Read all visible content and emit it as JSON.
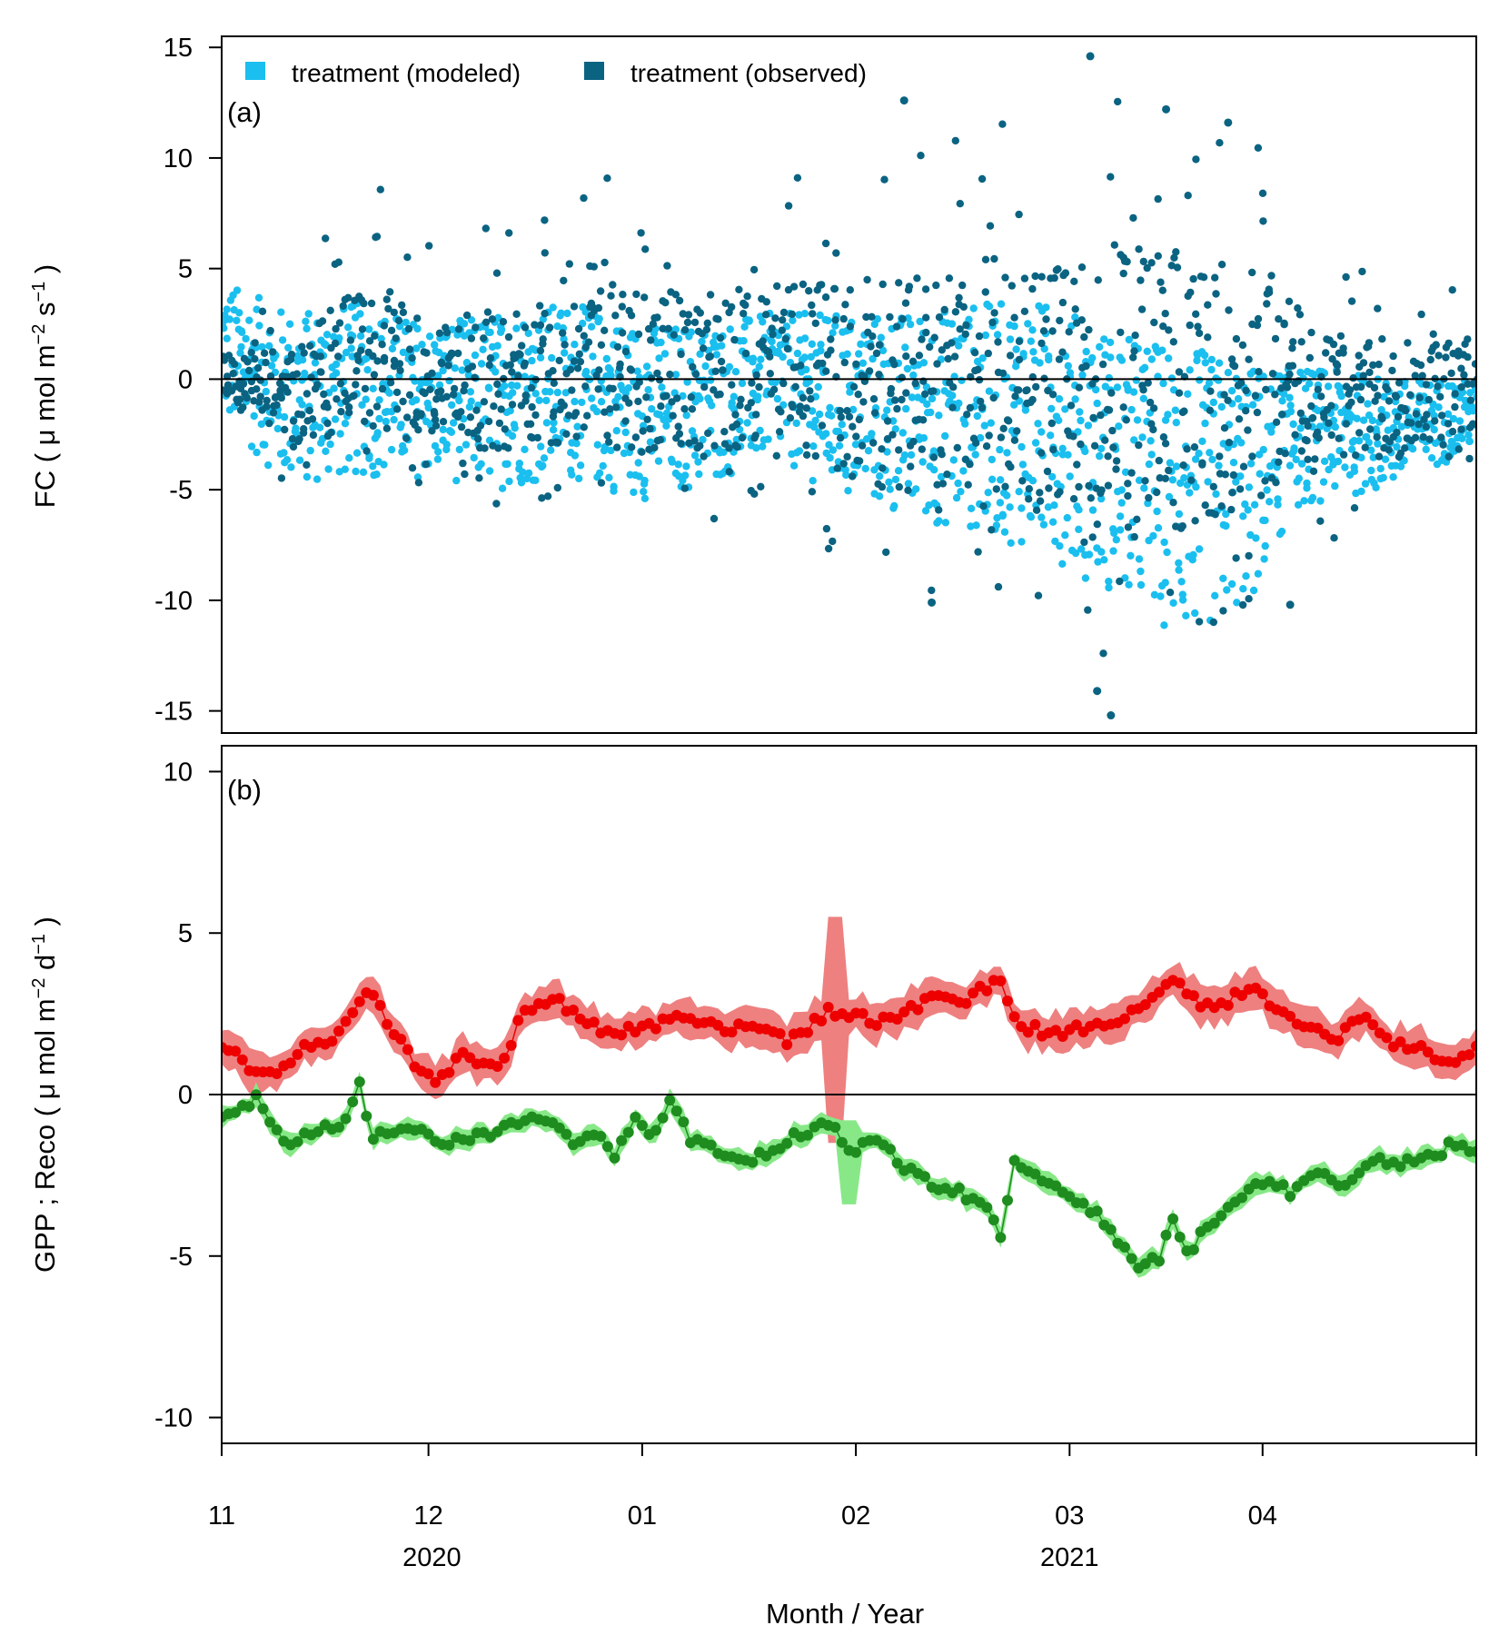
{
  "chart_data": [
    {
      "type": "scatter",
      "panel_label": "(a)",
      "ylabel": "FC ( μ mol m−2 s−1 )",
      "ylabel_parts": {
        "prefix": "FC ( ",
        "mu": "μ",
        "mid1": " mol m",
        "sup1": "−2",
        "mid2": " s",
        "sup2": "−1",
        "suffix": " )"
      },
      "ylim": [
        -16,
        15.5
      ],
      "yticks": [
        -15,
        -10,
        -5,
        0,
        5,
        10,
        15
      ],
      "ytick_labels": [
        "-15",
        "-10",
        "-5",
        "0",
        "5",
        "10",
        "15"
      ],
      "xlim_days": [
        0,
        182
      ],
      "reference_line_y": 0,
      "legend": {
        "position": "top-left",
        "entries": [
          {
            "label": "treatment (modeled)",
            "color": "#1ABFEF"
          },
          {
            "label": "treatment (observed)",
            "color": "#0B6382"
          }
        ]
      },
      "series": [
        {
          "name": "treatment (modeled)",
          "color": "#1ABFEF",
          "description": "half-hourly modeled FC",
          "daily_envelope": {
            "x_days": [
              0,
              10,
              20,
              30,
              40,
              50,
              60,
              70,
              80,
              90,
              100,
              110,
              120,
              130,
              140,
              150,
              155,
              160,
              170,
              182
            ],
            "upper": [
              4.5,
              3.0,
              3.5,
              2.5,
              3.0,
              3.5,
              2.5,
              2.5,
              3.0,
              3.0,
              3.0,
              3.5,
              3.5,
              2.0,
              1.5,
              0.5,
              0.5,
              0.5,
              0.0,
              0.0
            ],
            "lower": [
              -2.0,
              -5.0,
              -4.5,
              -4.5,
              -5.0,
              -4.5,
              -5.5,
              -5.0,
              -3.5,
              -5.5,
              -6.5,
              -7.0,
              -8.0,
              -10.0,
              -12.0,
              -10.0,
              -6.0,
              -5.5,
              -5.0,
              -3.0
            ]
          }
        },
        {
          "name": "treatment (observed)",
          "color": "#0B6382",
          "description": "half-hourly observed FC",
          "daily_envelope": {
            "x_days": [
              0,
              10,
              20,
              30,
              40,
              50,
              60,
              70,
              80,
              90,
              100,
              110,
              120,
              130,
              140,
              150,
              155,
              160,
              170,
              182
            ],
            "upper": [
              2.5,
              3.5,
              9.5,
              6.5,
              7.0,
              9.0,
              9.5,
              8.5,
              9.5,
              10.5,
              11.5,
              12.5,
              11.0,
              14.5,
              12.0,
              11.5,
              8.5,
              5.0,
              5.0,
              4.0
            ],
            "lower": [
              -1.5,
              -5.5,
              -4.0,
              -5.0,
              -6.0,
              -5.5,
              -6.0,
              -6.5,
              -5.5,
              -8.5,
              -10.0,
              -10.5,
              -11.0,
              -15.0,
              -12.5,
              -10.0,
              -8.0,
              -7.5,
              -6.5,
              -4.0
            ]
          },
          "notable_points": [
            {
              "x": 126,
              "y": 14.6
            },
            {
              "x": 137,
              "y": 12.2
            },
            {
              "x": 99,
              "y": 12.6
            },
            {
              "x": 146,
              "y": 11.6
            },
            {
              "x": 129,
              "y": -15.2
            },
            {
              "x": 127,
              "y": -14.1
            },
            {
              "x": 103,
              "y": -10.1
            },
            {
              "x": 155,
              "y": -10.2
            }
          ]
        }
      ]
    },
    {
      "type": "line",
      "panel_label": "(b)",
      "ylabel": "GPP ; Reco ( μ mol m−2 d−1 )",
      "ylabel_parts": {
        "prefix": "GPP ; Reco ( ",
        "mu": "μ",
        "mid1": " mol m",
        "sup1": "−2",
        "mid2": " d",
        "sup2": "−1",
        "suffix": " )"
      },
      "ylim": [
        -10.8,
        10.8
      ],
      "yticks": [
        -10,
        -5,
        0,
        5,
        10
      ],
      "ytick_labels": [
        "-10",
        "-5",
        "0",
        "5",
        "10"
      ],
      "xlim_days": [
        0,
        182
      ],
      "reference_line_y": 0,
      "xlabel": "Month / Year",
      "xticks_days": [
        0,
        30,
        61,
        92,
        123,
        151,
        182
      ],
      "xtick_labels": [
        "11",
        "12",
        "01",
        "02",
        "03",
        "04",
        ""
      ],
      "year_labels": [
        {
          "label": "2020",
          "x_days": 30.5
        },
        {
          "label": "2021",
          "x_days": 123
        }
      ],
      "series": [
        {
          "name": "Reco",
          "color": "#EE0000",
          "band_color": "#EE8080",
          "knots_x": [
            0,
            4,
            8,
            12,
            17,
            19,
            21,
            26,
            28,
            31,
            35,
            39,
            41,
            44,
            48,
            52,
            56,
            62,
            66,
            70,
            74,
            78,
            82,
            86,
            88,
            92,
            95,
            100,
            104,
            108,
            110,
            113,
            116,
            118,
            121,
            124,
            128,
            132,
            136,
            138,
            141,
            145,
            148,
            150,
            154,
            158,
            162,
            166,
            170,
            174,
            178,
            180,
            182
          ],
          "knots_y": [
            1.5,
            0.9,
            0.7,
            1.5,
            1.8,
            2.6,
            3.3,
            1.6,
            1.0,
            0.5,
            1.2,
            0.9,
            1.0,
            2.7,
            3.0,
            2.4,
            1.9,
            2.1,
            2.5,
            2.3,
            2.0,
            2.1,
            1.7,
            2.2,
            2.6,
            2.4,
            2.3,
            2.6,
            3.1,
            2.9,
            3.3,
            3.5,
            2.0,
            2.0,
            1.9,
            2.1,
            2.1,
            2.5,
            3.1,
            3.7,
            2.9,
            2.8,
            3.1,
            3.4,
            2.4,
            2.1,
            1.8,
            2.5,
            1.5,
            1.4,
            1.0,
            1.1,
            1.6
          ],
          "band_halfwidth": 0.55,
          "anomaly": {
            "x": 89,
            "upper": 5.5,
            "lower": -1.5
          }
        },
        {
          "name": "GPP",
          "color": "#1E8C1E",
          "band_color": "#88E888",
          "knots_x": [
            0,
            3,
            5,
            7,
            10,
            13,
            17,
            20,
            22,
            24,
            28,
            33,
            38,
            42,
            45,
            48,
            51,
            54,
            57,
            60,
            63,
            65,
            68,
            72,
            76,
            80,
            84,
            88,
            91,
            95,
            100,
            104,
            108,
            111,
            113,
            115,
            118,
            121,
            124,
            127,
            130,
            133,
            136,
            138,
            140,
            143,
            147,
            151,
            155,
            159,
            163,
            167,
            171,
            174,
            178,
            182
          ],
          "knots_y": [
            -0.6,
            -0.4,
            0.0,
            -0.8,
            -1.6,
            -1.1,
            -1.1,
            0.4,
            -1.5,
            -1.1,
            -1.0,
            -1.5,
            -1.3,
            -1.0,
            -0.8,
            -0.8,
            -1.4,
            -1.1,
            -2.0,
            -0.8,
            -1.2,
            -0.1,
            -1.4,
            -1.8,
            -2.1,
            -1.7,
            -1.2,
            -0.9,
            -1.7,
            -1.4,
            -2.4,
            -2.9,
            -3.1,
            -3.6,
            -4.3,
            -2.0,
            -2.6,
            -2.8,
            -3.4,
            -3.6,
            -4.6,
            -5.3,
            -5.0,
            -3.9,
            -5.0,
            -4.1,
            -3.3,
            -2.8,
            -3.0,
            -2.5,
            -2.9,
            -2.0,
            -2.1,
            -2.1,
            -1.6,
            -1.7
          ],
          "band_halfwidth": 0.3,
          "anomaly": {
            "x": 91,
            "upper": -0.8,
            "lower": -3.4
          }
        }
      ]
    }
  ]
}
